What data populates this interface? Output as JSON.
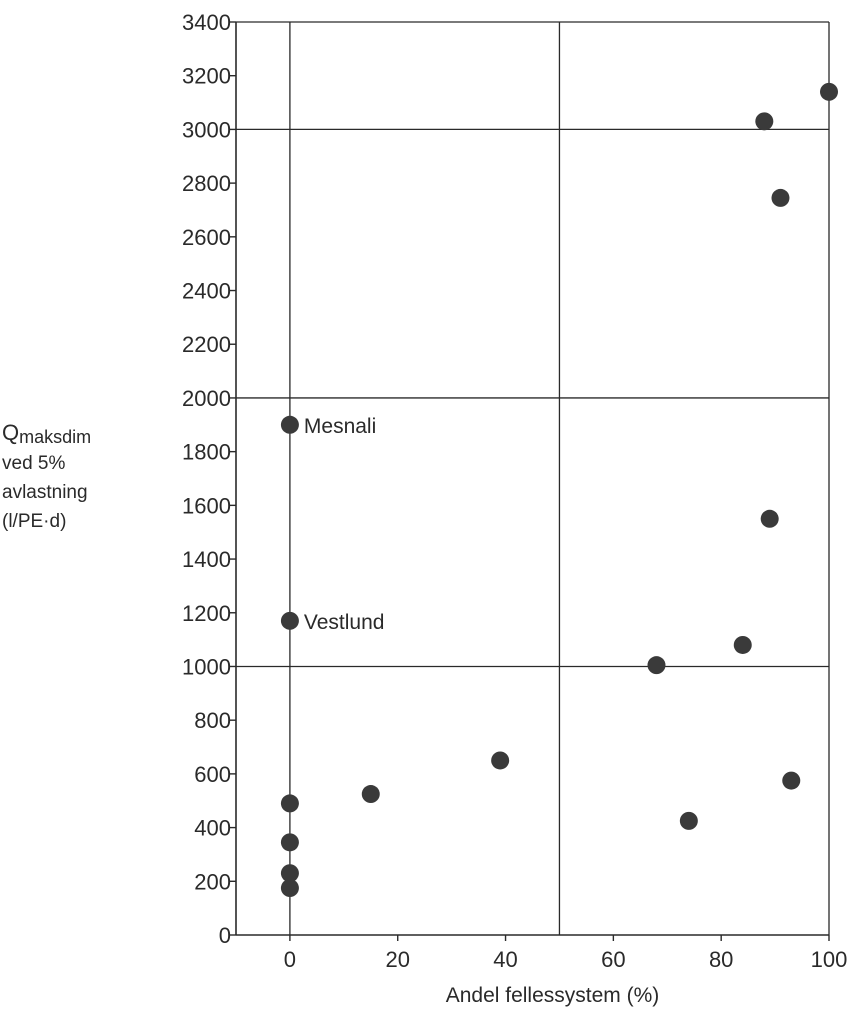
{
  "chart_data": {
    "type": "scatter",
    "title": "",
    "xlabel": "Andel fellessystem (%)",
    "ylabel": {
      "q": "Q",
      "q_sub": "maksdim",
      "line2": "ved 5%",
      "line3": "avlastning",
      "line4": "(l/PE·d)"
    },
    "xlim": [
      -10,
      100
    ],
    "ylim": [
      0,
      3400
    ],
    "x_ticks": [
      0,
      20,
      40,
      60,
      80,
      100
    ],
    "y_ticks": [
      0,
      200,
      400,
      600,
      800,
      1000,
      1200,
      1400,
      1600,
      1800,
      2000,
      2200,
      2400,
      2600,
      2800,
      3000,
      3200,
      3400
    ],
    "x_gridlines": [
      0,
      50,
      100
    ],
    "y_gridlines": [
      1000,
      2000,
      3000
    ],
    "grid": true,
    "marker_color": "#3a3a3a",
    "line_color": "#2a2a2a",
    "points": [
      {
        "x": 0,
        "y": 1900,
        "label": "Mesnali"
      },
      {
        "x": 0,
        "y": 1170,
        "label": "Vestlund"
      },
      {
        "x": 0,
        "y": 490,
        "label": ""
      },
      {
        "x": 0,
        "y": 345,
        "label": ""
      },
      {
        "x": 0,
        "y": 230,
        "label": ""
      },
      {
        "x": 0,
        "y": 175,
        "label": ""
      },
      {
        "x": 15,
        "y": 525,
        "label": ""
      },
      {
        "x": 39,
        "y": 650,
        "label": ""
      },
      {
        "x": 68,
        "y": 1005,
        "label": ""
      },
      {
        "x": 74,
        "y": 425,
        "label": ""
      },
      {
        "x": 84,
        "y": 1080,
        "label": ""
      },
      {
        "x": 88,
        "y": 3030,
        "label": ""
      },
      {
        "x": 89,
        "y": 1550,
        "label": ""
      },
      {
        "x": 91,
        "y": 2745,
        "label": ""
      },
      {
        "x": 93,
        "y": 575,
        "label": ""
      },
      {
        "x": 100,
        "y": 3140,
        "label": ""
      }
    ]
  }
}
